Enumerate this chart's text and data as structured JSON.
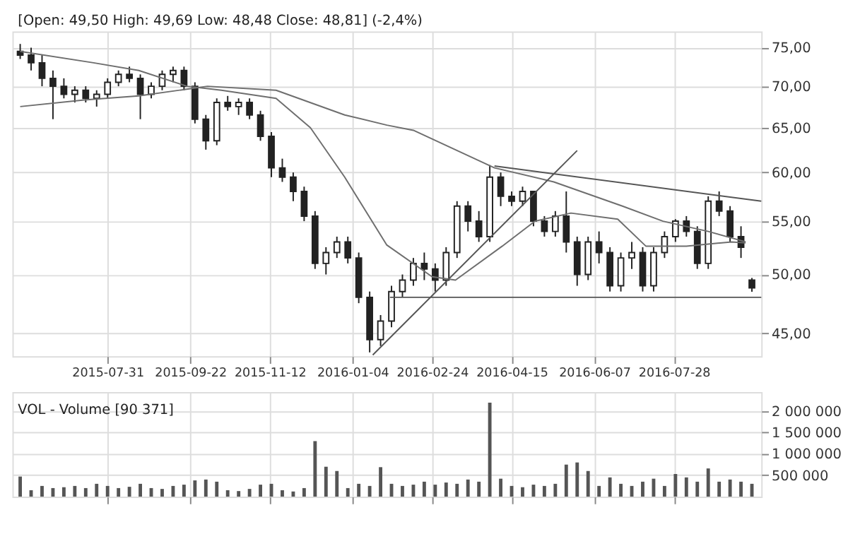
{
  "chart_data": [
    {
      "type": "candlestick",
      "title": "[Open: 49,50 High: 49,69 Low: 48,48 Close: 48,81] (-2,4%)",
      "color": "#222222",
      "log": "y",
      "grid": true,
      "xlim": [
        "2015-05-31",
        "2016-09-22"
      ],
      "xticks": [
        "2015-07-31",
        "2015-09-22",
        "2015-11-12",
        "2016-01-04",
        "2016-02-24",
        "2016-04-15",
        "2016-06-07",
        "2016-07-28"
      ],
      "ylim": [
        43.2,
        77.2
      ],
      "yticks": [
        {
          "value": 45,
          "label": "45,00"
        },
        {
          "value": 50,
          "label": "50,00"
        },
        {
          "value": 55,
          "label": "55,00"
        },
        {
          "value": 60,
          "label": "60,00"
        },
        {
          "value": 65,
          "label": "65,00"
        },
        {
          "value": 70,
          "label": "70,00"
        },
        {
          "value": 75,
          "label": "75,00"
        }
      ],
      "x": [
        "2015-06-05",
        "2015-06-12",
        "2015-06-19",
        "2015-06-26",
        "2015-07-03",
        "2015-07-10",
        "2015-07-17",
        "2015-07-24",
        "2015-07-31",
        "2015-08-07",
        "2015-08-14",
        "2015-08-21",
        "2015-08-28",
        "2015-09-04",
        "2015-09-11",
        "2015-09-18",
        "2015-09-25",
        "2015-10-02",
        "2015-10-09",
        "2015-10-16",
        "2015-10-23",
        "2015-10-30",
        "2015-11-06",
        "2015-11-13",
        "2015-11-20",
        "2015-11-27",
        "2015-12-04",
        "2015-12-11",
        "2015-12-18",
        "2015-12-25",
        "2016-01-01",
        "2016-01-08",
        "2016-01-15",
        "2016-01-22",
        "2016-01-29",
        "2016-02-05",
        "2016-02-12",
        "2016-02-19",
        "2016-02-26",
        "2016-03-04",
        "2016-03-11",
        "2016-03-18",
        "2016-03-25",
        "2016-04-01",
        "2016-04-08",
        "2016-04-15",
        "2016-04-22",
        "2016-04-29",
        "2016-05-06",
        "2016-05-13",
        "2016-05-20",
        "2016-05-27",
        "2016-06-03",
        "2016-06-10",
        "2016-06-17",
        "2016-06-24",
        "2016-07-01",
        "2016-07-08",
        "2016-07-15",
        "2016-07-22",
        "2016-07-29",
        "2016-08-05",
        "2016-08-12",
        "2016-08-19",
        "2016-08-26",
        "2016-09-02",
        "2016-09-09",
        "2016-09-16"
      ],
      "ohlc": [
        [
          74.5,
          75.5,
          73.5,
          74
        ],
        [
          74,
          75,
          72,
          73
        ],
        [
          73,
          74,
          70,
          71
        ],
        [
          71,
          72,
          66,
          70
        ],
        [
          70,
          71,
          68.5,
          69
        ],
        [
          69,
          70,
          68,
          69.5
        ],
        [
          69.5,
          70,
          68,
          68.5
        ],
        [
          68.5,
          69.5,
          67.5,
          69
        ],
        [
          69,
          71,
          68.5,
          70.5
        ],
        [
          70.5,
          72,
          70,
          71.5
        ],
        [
          71.5,
          72.5,
          70.5,
          71
        ],
        [
          71,
          71.5,
          66,
          69
        ],
        [
          69,
          70.5,
          68.5,
          70
        ],
        [
          70,
          72,
          69.5,
          71.5
        ],
        [
          71.5,
          72.5,
          70.5,
          72
        ],
        [
          72,
          72.5,
          69.5,
          70
        ],
        [
          70,
          70.5,
          65.5,
          66
        ],
        [
          66,
          66.5,
          62.5,
          63.5
        ],
        [
          63.5,
          68.5,
          63,
          68
        ],
        [
          68,
          68.8,
          67,
          67.5
        ],
        [
          67.5,
          68.5,
          66.5,
          68
        ],
        [
          68,
          68.5,
          66,
          66.5
        ],
        [
          66.5,
          67,
          63.5,
          64
        ],
        [
          64,
          64.5,
          59.5,
          60.5
        ],
        [
          60.5,
          61.5,
          59,
          59.5
        ],
        [
          59.5,
          60,
          57,
          58
        ],
        [
          58,
          58.5,
          55,
          55.5
        ],
        [
          55.5,
          56,
          50.5,
          51
        ],
        [
          51,
          52.5,
          50,
          52
        ],
        [
          52,
          53.5,
          51.5,
          53
        ],
        [
          53,
          53.5,
          51,
          51.5
        ],
        [
          51.5,
          52,
          47.5,
          48
        ],
        [
          48,
          48.5,
          43.5,
          44.5
        ],
        [
          44.5,
          46.5,
          44,
          46
        ],
        [
          46,
          49,
          45.5,
          48.5
        ],
        [
          48.5,
          50,
          48,
          49.5
        ],
        [
          49.5,
          51.5,
          49,
          51
        ],
        [
          51,
          52,
          49.5,
          50.5
        ],
        [
          50.5,
          51,
          48.5,
          49.5
        ],
        [
          49.5,
          52.5,
          49,
          52
        ],
        [
          52,
          57,
          51.5,
          56.5
        ],
        [
          56.5,
          57,
          54,
          55
        ],
        [
          55,
          56,
          53,
          53.5
        ],
        [
          53.5,
          60.8,
          53,
          59.5
        ],
        [
          59.5,
          60,
          56.5,
          57.5
        ],
        [
          57.5,
          58,
          56.5,
          57
        ],
        [
          57,
          58.5,
          56.5,
          58
        ],
        [
          58,
          58,
          54.5,
          55
        ],
        [
          55,
          55.5,
          53.5,
          54
        ],
        [
          54,
          56,
          53.5,
          55.5
        ],
        [
          55.5,
          58,
          52,
          53
        ],
        [
          53,
          53.5,
          49,
          50
        ],
        [
          50,
          53.5,
          49.5,
          53
        ],
        [
          53,
          54,
          51,
          52
        ],
        [
          52,
          52.5,
          48.5,
          49
        ],
        [
          49,
          52,
          48.5,
          51.5
        ],
        [
          51.5,
          53,
          50.5,
          52
        ],
        [
          52,
          52.5,
          48.5,
          49
        ],
        [
          49,
          52.5,
          48.5,
          52
        ],
        [
          52,
          54,
          51.5,
          53.5
        ],
        [
          53.5,
          55.2,
          53,
          55
        ],
        [
          55,
          55.5,
          53.5,
          54
        ],
        [
          54,
          54.5,
          50.5,
          51
        ],
        [
          51,
          57.5,
          50.5,
          57
        ],
        [
          57,
          58,
          55.5,
          56
        ],
        [
          56,
          56.5,
          53,
          53.5
        ],
        [
          53.5,
          54.5,
          51.5,
          52.5
        ],
        [
          49.5,
          49.69,
          48.48,
          48.81
        ]
      ],
      "series": [
        {
          "type": "line",
          "color": "#6e6e6e",
          "x": [
            "2015-06-05",
            "2015-07-16",
            "2015-08-20",
            "2015-10-03",
            "2015-11-16",
            "2015-12-30",
            "2016-01-26",
            "2016-02-12",
            "2016-04-04",
            "2016-05-12",
            "2016-06-25",
            "2016-07-21",
            "2016-08-19",
            "2016-09-12"
          ],
          "values": [
            67.5,
            68.3,
            68.8,
            70,
            69.5,
            66.5,
            65.3,
            64.7,
            60.5,
            59,
            56.5,
            55,
            54,
            53
          ]
        },
        {
          "type": "line",
          "color": "#6e6e6e",
          "x": [
            "2015-06-05",
            "2015-07-22",
            "2015-08-20",
            "2015-09-20",
            "2015-10-12",
            "2015-11-16",
            "2015-12-08",
            "2015-12-30",
            "2016-01-26",
            "2016-02-24",
            "2016-03-10",
            "2016-04-09",
            "2016-04-30",
            "2016-05-23",
            "2016-06-22",
            "2016-07-10",
            "2016-08-05",
            "2016-09-03",
            "2016-09-12"
          ],
          "values": [
            74.5,
            73,
            72,
            70,
            69.5,
            68.5,
            65,
            59.5,
            52.7,
            49.8,
            49.5,
            52.6,
            55,
            55.8,
            55.2,
            52.6,
            52.6,
            53,
            52.9
          ]
        },
        {
          "type": "line",
          "color": "#555555",
          "x": [
            "2016-01-17",
            "2016-05-27"
          ],
          "values": [
            43.3,
            62.4
          ]
        },
        {
          "type": "line",
          "color": "#555555",
          "x": [
            "2016-04-04",
            "2016-09-22"
          ],
          "values": [
            60.7,
            57
          ]
        },
        {
          "type": "line",
          "color": "#555555",
          "x": [
            "2016-01-28",
            "2016-09-22"
          ],
          "values": [
            48,
            48
          ]
        }
      ]
    },
    {
      "type": "bar",
      "title": "VOL - Volume [90 371]",
      "color": "#555555",
      "grid": true,
      "tick_labels": "y",
      "xlim": [
        "2015-05-31",
        "2016-09-22"
      ],
      "xticks": [
        "2015-07-31",
        "2015-09-22",
        "2015-11-12",
        "2016-01-04",
        "2016-02-24",
        "2016-04-15",
        "2016-06-07",
        "2016-07-28"
      ],
      "ylim": [
        0,
        2450000
      ],
      "yticks": [
        {
          "value": 500000,
          "label": "500 000"
        },
        {
          "value": 1000000,
          "label": "1 000 000"
        },
        {
          "value": 1500000,
          "label": "1 500 000"
        },
        {
          "value": 2000000,
          "label": "2 000 000"
        }
      ],
      "x": [
        "2015-06-05",
        "2015-06-12",
        "2015-06-19",
        "2015-06-26",
        "2015-07-03",
        "2015-07-10",
        "2015-07-17",
        "2015-07-24",
        "2015-07-31",
        "2015-08-07",
        "2015-08-14",
        "2015-08-21",
        "2015-08-28",
        "2015-09-04",
        "2015-09-11",
        "2015-09-18",
        "2015-09-25",
        "2015-10-02",
        "2015-10-09",
        "2015-10-16",
        "2015-10-23",
        "2015-10-30",
        "2015-11-06",
        "2015-11-13",
        "2015-11-20",
        "2015-11-27",
        "2015-12-04",
        "2015-12-11",
        "2015-12-18",
        "2015-12-25",
        "2016-01-01",
        "2016-01-08",
        "2016-01-15",
        "2016-01-22",
        "2016-01-29",
        "2016-02-05",
        "2016-02-12",
        "2016-02-19",
        "2016-02-26",
        "2016-03-04",
        "2016-03-11",
        "2016-03-18",
        "2016-03-25",
        "2016-04-01",
        "2016-04-08",
        "2016-04-15",
        "2016-04-22",
        "2016-04-29",
        "2016-05-06",
        "2016-05-13",
        "2016-05-20",
        "2016-05-27",
        "2016-06-03",
        "2016-06-10",
        "2016-06-17",
        "2016-06-24",
        "2016-07-01",
        "2016-07-08",
        "2016-07-15",
        "2016-07-22",
        "2016-07-29",
        "2016-08-05",
        "2016-08-12",
        "2016-08-19",
        "2016-08-26",
        "2016-09-02",
        "2016-09-09",
        "2016-09-16"
      ],
      "values": [
        470000,
        150000,
        250000,
        200000,
        220000,
        250000,
        200000,
        300000,
        250000,
        200000,
        230000,
        300000,
        200000,
        180000,
        250000,
        280000,
        380000,
        400000,
        350000,
        150000,
        130000,
        180000,
        280000,
        300000,
        150000,
        120000,
        200000,
        1300000,
        700000,
        600000,
        200000,
        300000,
        250000,
        690000,
        300000,
        250000,
        280000,
        350000,
        280000,
        330000,
        300000,
        400000,
        350000,
        2200000,
        420000,
        250000,
        220000,
        280000,
        250000,
        300000,
        750000,
        800000,
        600000,
        250000,
        450000,
        300000,
        250000,
        350000,
        420000,
        250000,
        530000,
        450000,
        350000,
        660000,
        350000,
        400000,
        350000,
        300000
      ]
    }
  ]
}
